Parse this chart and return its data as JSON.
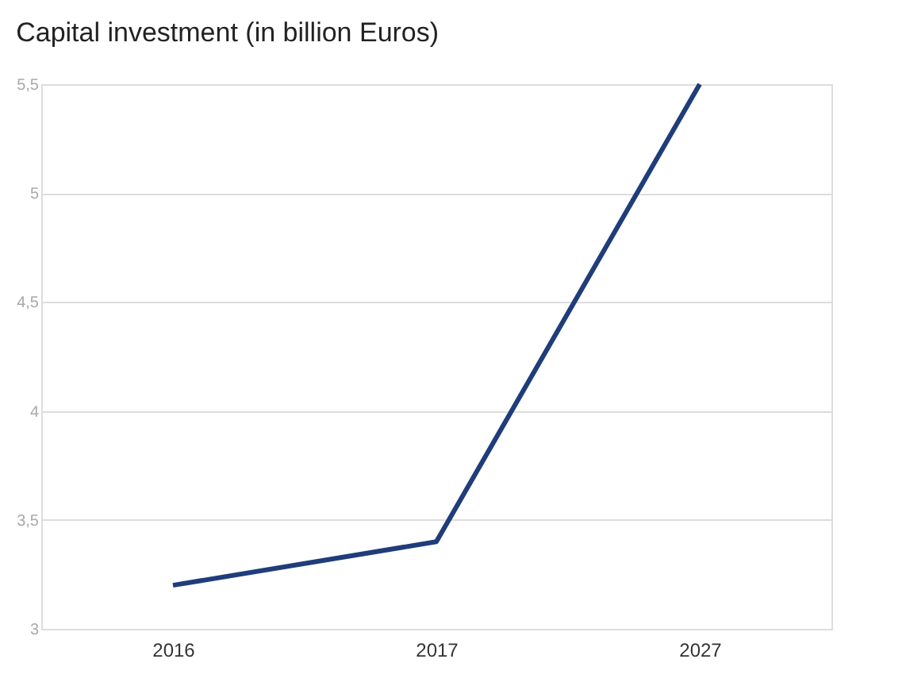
{
  "chart_data": {
    "type": "line",
    "title": "Capital investment (in billion Euros)",
    "categories": [
      "2016",
      "2017",
      "2027"
    ],
    "series": [
      {
        "color": "#1f3d7a",
        "values": [
          3.2,
          3.4,
          5.5
        ]
      }
    ],
    "ylim": [
      3,
      5.5
    ],
    "yticks": [
      3,
      {
        "value": 3.5,
        "label": "3,5"
      },
      4,
      {
        "value": 4.5,
        "label": "4,5"
      },
      5,
      {
        "value": 5.5,
        "label": "5,5"
      }
    ],
    "grid": "y",
    "marker": "none",
    "line_style": "solid"
  }
}
